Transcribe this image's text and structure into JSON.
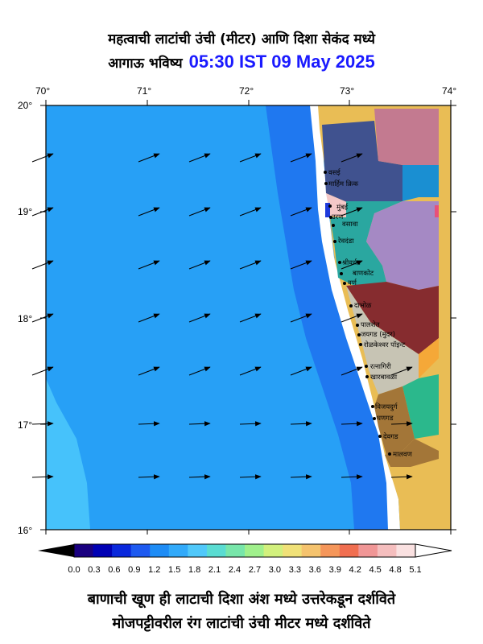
{
  "title": {
    "line1": "महत्वाची लाटांची उंची (मीटर) आणि दिशा सेकंद मध्ये",
    "line2_prefix": "आगाऊ भविष्य",
    "timestamp": "05:30 IST 09 May 2025"
  },
  "map": {
    "lon_labels": [
      "70°",
      "71°",
      "72°",
      "73°",
      "74°"
    ],
    "lat_labels": [
      "20°",
      "19°",
      "18°",
      "17°",
      "16°"
    ],
    "places": [
      "वसई",
      "मार्हिम क्रिक",
      "मुंबई",
      "उरण",
      "वसावा",
      "रेवदंडा",
      "श्रीवर्धन",
      "बाणकोट",
      "वर्ण",
      "दाभोळ",
      "पालशेत",
      "जयगड (मुदर)",
      "रोळकेश्वर पॉइन्ट",
      "रत्नागिरी",
      "खारबावळा",
      "विजयदुर्ग",
      "घणगड",
      "देवगड",
      "मालवण"
    ],
    "colors": {
      "deep_sea": "#1f78f0",
      "mid_sea": "#27a0f6",
      "shallow_sea": "#46c2fb",
      "land": "#e9bd55",
      "coast_white": "#ffffff"
    }
  },
  "colorbar": {
    "ticks": [
      "0.0",
      "0.3",
      "0.6",
      "0.9",
      "1.2",
      "1.5",
      "1.8",
      "2.1",
      "2.4",
      "2.7",
      "3.0",
      "3.3",
      "3.6",
      "3.9",
      "4.2",
      "4.5",
      "4.8",
      "5.1"
    ],
    "colors": [
      "#1a0080",
      "#0000b4",
      "#0a28dc",
      "#1e5af0",
      "#1e8cf5",
      "#32aafa",
      "#50c8fa",
      "#5adcd2",
      "#78e6aa",
      "#a0f08c",
      "#d2f07d",
      "#f0e178",
      "#f5c36e",
      "#f5965a",
      "#f06e50",
      "#f09696",
      "#f5bebe",
      "#fae1e1"
    ]
  },
  "footer": {
    "line1": "बाणाची खूण ही लाटाची दिशा अंश मध्ये उत्तरेकडून दर्शविते",
    "line2": "मोजपट्टीवरील रंग लाटांची उंची मीटर मध्ये दर्शविते"
  }
}
